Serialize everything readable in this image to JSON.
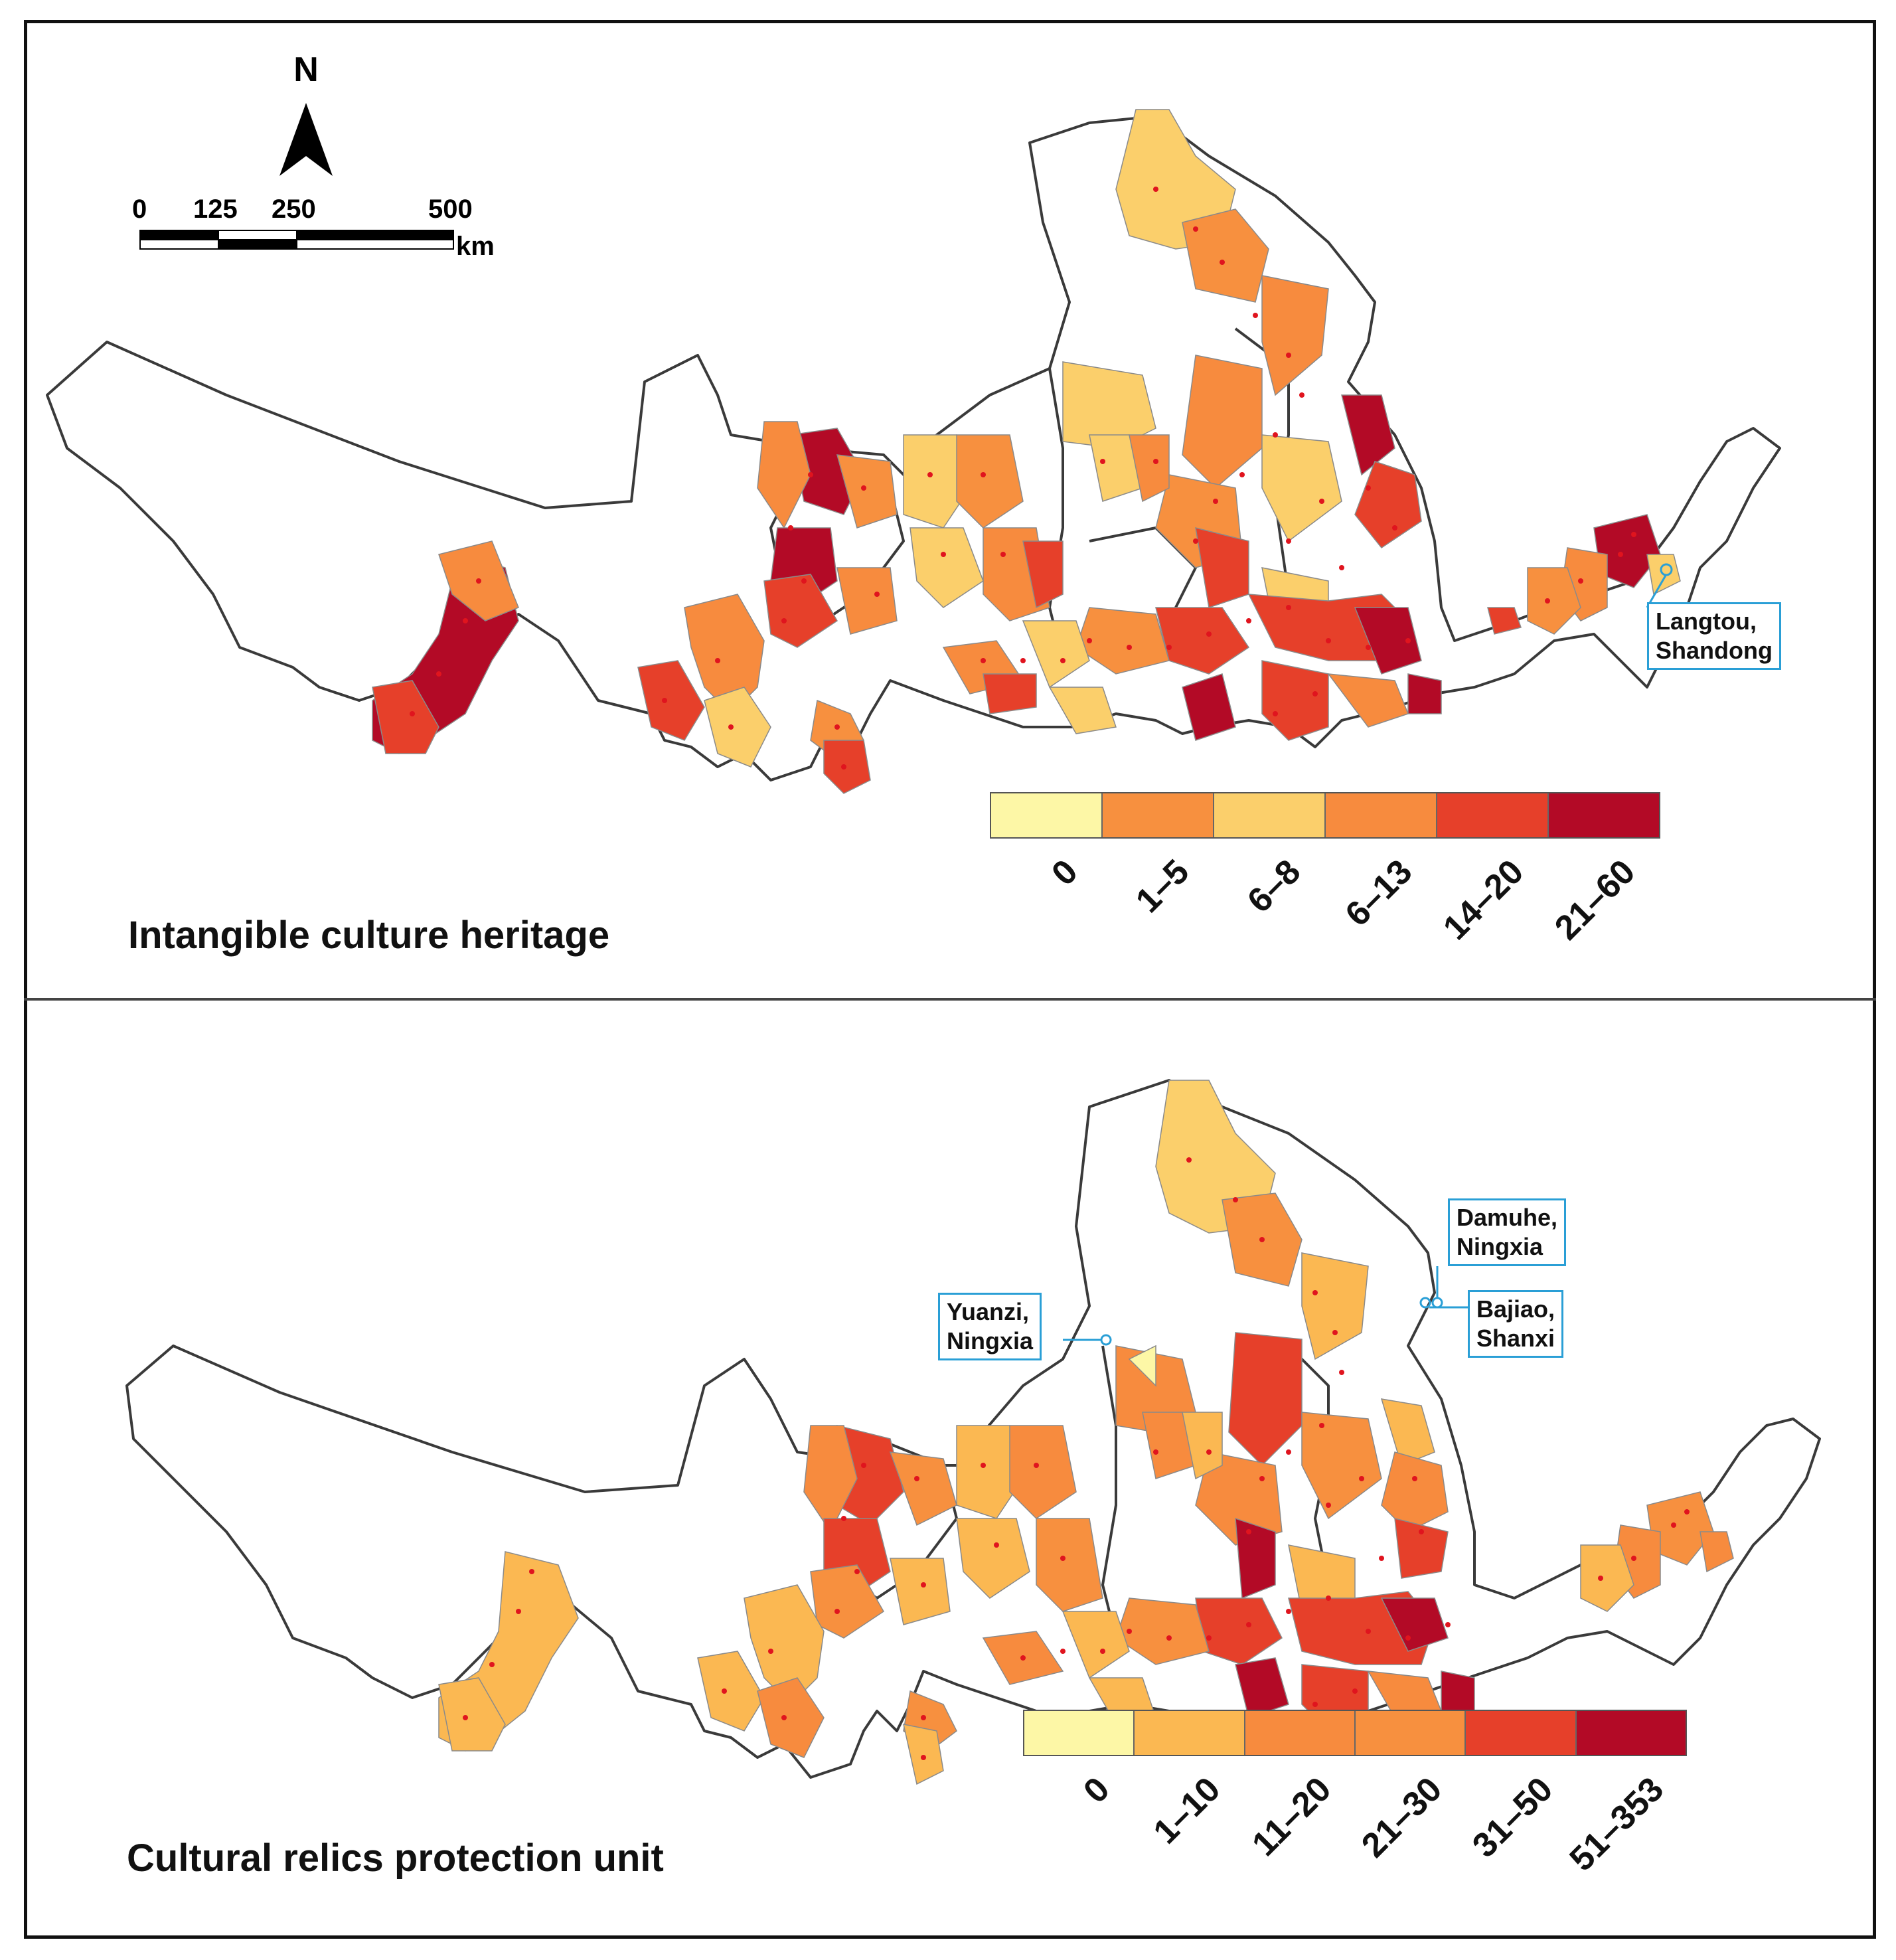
{
  "north_label": "N",
  "scale_bar": {
    "ticks": [
      "0",
      "125",
      "250",
      "500"
    ],
    "unit": "km"
  },
  "panels": [
    {
      "title": "Intangible culture heritage",
      "legend": [
        {
          "label": "0",
          "color": "#fdf7a6"
        },
        {
          "label": "1–5",
          "color": "#f7903f"
        },
        {
          "label": "6–8",
          "color": "#fbcf6b"
        },
        {
          "label": "6–13",
          "color": "#f78b3e"
        },
        {
          "label": "14–20",
          "color": "#e6402a"
        },
        {
          "label": "21–60",
          "color": "#b30a26"
        }
      ],
      "callouts": [
        {
          "line1": "Langtou,",
          "line2": "Shandong"
        }
      ]
    },
    {
      "title": "Cultural relics protection unit",
      "legend": [
        {
          "label": "0",
          "color": "#fdf7a6"
        },
        {
          "label": "1–10",
          "color": "#fbb852"
        },
        {
          "label": "11–20",
          "color": "#f78b3e"
        },
        {
          "label": "21–30",
          "color": "#f7903f"
        },
        {
          "label": "31–50",
          "color": "#e6402a"
        },
        {
          "label": "51–353",
          "color": "#b30a26"
        }
      ],
      "callouts": [
        {
          "line1": "Yuanzi,",
          "line2": "Ningxia"
        },
        {
          "line1": "Damuhe,",
          "line2": "Ningxia"
        },
        {
          "line1": "Bajiao,",
          "line2": "Shanxi"
        }
      ]
    }
  ],
  "colors": {
    "outline": "#3a3a3a",
    "point": "#e0141e",
    "callout_border": "#2a9fd6",
    "frame": "#111111"
  }
}
